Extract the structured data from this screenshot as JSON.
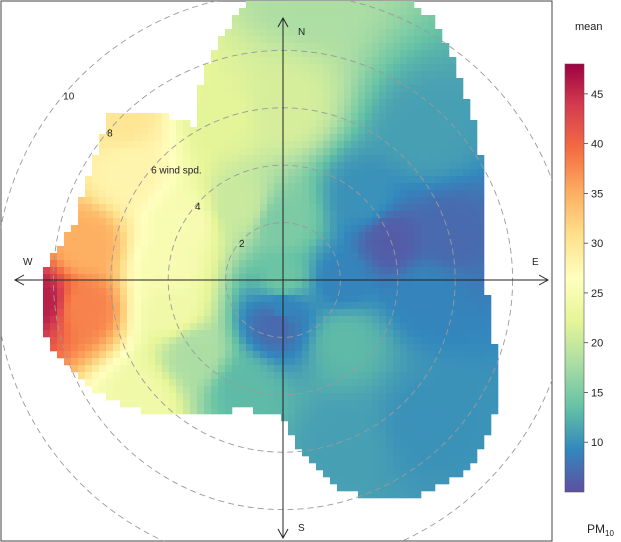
{
  "chart_data": {
    "type": "heatmap",
    "subtype": "polar-plot",
    "statistic_label": "mean",
    "pollutant_label": {
      "main": "PM",
      "sub": "10"
    },
    "direction_labels": {
      "north": "N",
      "south": "S",
      "east": "E",
      "west": "W"
    },
    "radial_axis": {
      "max": 11,
      "ticks": [
        2,
        4,
        6,
        8,
        10
      ],
      "tick_labels": [
        "2",
        "4",
        "6 wind spd.",
        "8",
        "10"
      ]
    },
    "color_scale": {
      "min": 5,
      "max": 48,
      "ticks": [
        10,
        15,
        20,
        25,
        30,
        35,
        40,
        45
      ],
      "palette": [
        "#5E4FA2",
        "#3288BD",
        "#66C2A5",
        "#ABDDA4",
        "#E6F598",
        "#FFFFBF",
        "#FEE08B",
        "#FDAE61",
        "#F46D43",
        "#D53E4F",
        "#9E0142"
      ]
    },
    "coverage_extent_wind_speed": [
      {
        "bearing": 0,
        "speed": 10.9
      },
      {
        "bearing": 15,
        "speed": 11
      },
      {
        "bearing": 30,
        "speed": 10.5
      },
      {
        "bearing": 45,
        "speed": 9
      },
      {
        "bearing": 60,
        "speed": 8
      },
      {
        "bearing": 75,
        "speed": 7.2
      },
      {
        "bearing": 90,
        "speed": 7
      },
      {
        "bearing": 105,
        "speed": 7.6
      },
      {
        "bearing": 120,
        "speed": 8.6
      },
      {
        "bearing": 135,
        "speed": 9.3
      },
      {
        "bearing": 150,
        "speed": 8.8
      },
      {
        "bearing": 165,
        "speed": 7.6
      },
      {
        "bearing": 180,
        "speed": 4.8
      },
      {
        "bearing": 195,
        "speed": 4.6
      },
      {
        "bearing": 210,
        "speed": 5.3
      },
      {
        "bearing": 225,
        "speed": 6.5
      },
      {
        "bearing": 240,
        "speed": 7.7
      },
      {
        "bearing": 255,
        "speed": 8.5
      },
      {
        "bearing": 270,
        "speed": 8.4
      },
      {
        "bearing": 285,
        "speed": 7.5
      },
      {
        "bearing": 300,
        "speed": 7.7
      },
      {
        "bearing": 315,
        "speed": 8.4
      },
      {
        "bearing": 330,
        "speed": 6.2
      },
      {
        "bearing": 345,
        "speed": 8.6
      }
    ],
    "concentration_anchors": [
      {
        "bearing": 0,
        "speed": 0,
        "value": 14
      },
      {
        "bearing": 0,
        "speed": 2,
        "value": 15
      },
      {
        "bearing": 0,
        "speed": 6,
        "value": 21
      },
      {
        "bearing": 5,
        "speed": 10,
        "value": 18
      },
      {
        "bearing": 45,
        "speed": 4,
        "value": 10
      },
      {
        "bearing": 45,
        "speed": 7,
        "value": 11
      },
      {
        "bearing": 70,
        "speed": 4,
        "value": 6
      },
      {
        "bearing": 75,
        "speed": 6,
        "value": 7
      },
      {
        "bearing": 90,
        "speed": 2,
        "value": 9
      },
      {
        "bearing": 95,
        "speed": 5,
        "value": 9
      },
      {
        "bearing": 135,
        "speed": 3,
        "value": 13
      },
      {
        "bearing": 135,
        "speed": 7,
        "value": 10
      },
      {
        "bearing": 160,
        "speed": 6,
        "value": 11
      },
      {
        "bearing": 180,
        "speed": 1,
        "value": 9
      },
      {
        "bearing": 190,
        "speed": 1.5,
        "value": 7
      },
      {
        "bearing": 200,
        "speed": 4,
        "value": 13
      },
      {
        "bearing": 230,
        "speed": 4,
        "value": 18
      },
      {
        "bearing": 230,
        "speed": 6.5,
        "value": 24
      },
      {
        "bearing": 255,
        "speed": 4,
        "value": 24
      },
      {
        "bearing": 262,
        "speed": 7,
        "value": 38
      },
      {
        "bearing": 265,
        "speed": 8.5,
        "value": 46
      },
      {
        "bearing": 275,
        "speed": 4,
        "value": 25
      },
      {
        "bearing": 280,
        "speed": 7,
        "value": 35
      },
      {
        "bearing": 300,
        "speed": 4,
        "value": 25
      },
      {
        "bearing": 305,
        "speed": 6.5,
        "value": 28
      },
      {
        "bearing": 315,
        "speed": 8,
        "value": 30
      },
      {
        "bearing": 330,
        "speed": 3,
        "value": 20
      },
      {
        "bearing": 340,
        "speed": 6,
        "value": 22
      }
    ]
  }
}
